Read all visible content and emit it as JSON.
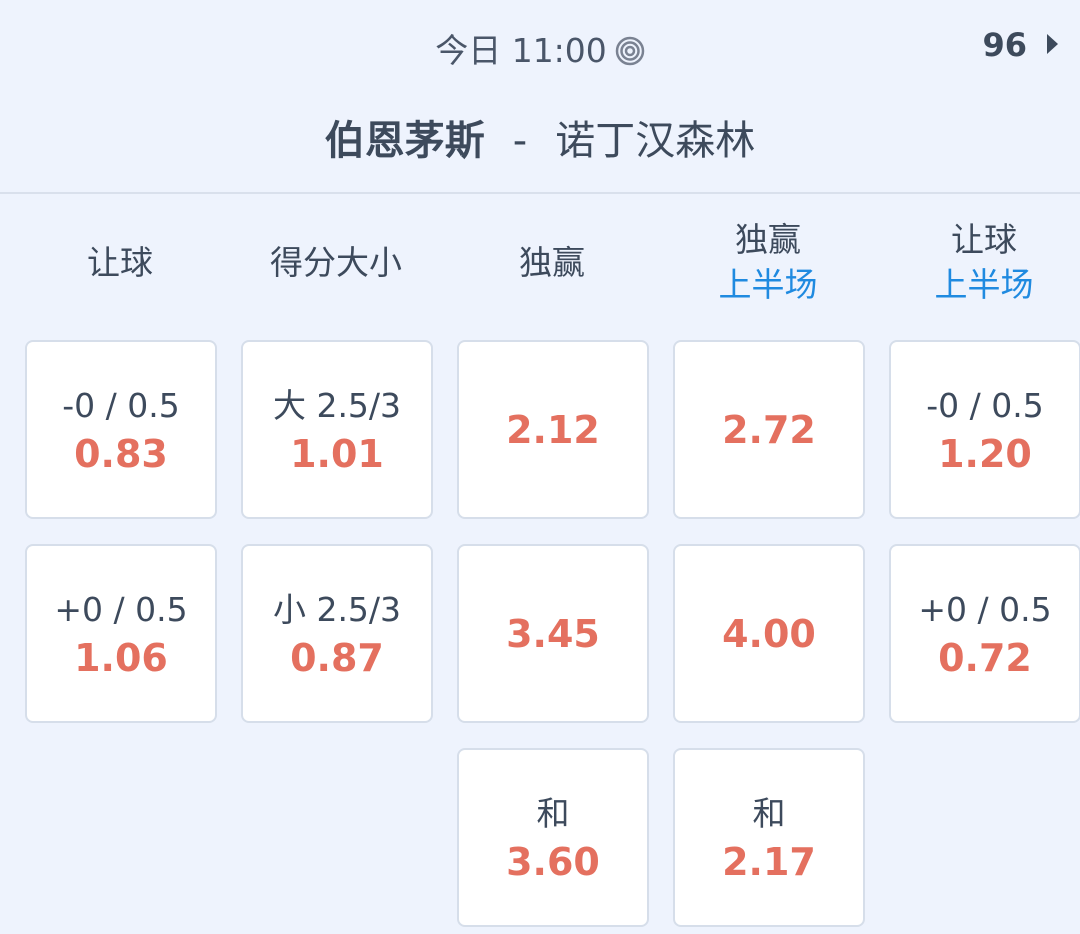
{
  "header": {
    "time": "今日 11:00",
    "live_icon": "target-icon",
    "market_count": "96",
    "home_team": "伯恩茅斯",
    "separator": "-",
    "away_team": "诺丁汉森林"
  },
  "colors": {
    "odds": "#e4705f",
    "sub_label": "#1f8ae0",
    "text": "#3d4a5c",
    "background": "#eef3fd"
  },
  "columns": [
    {
      "title": "让球",
      "sub": "",
      "cells": [
        {
          "label": "-0 / 0.5",
          "odds": "0.83"
        },
        {
          "label": "+0 / 0.5",
          "odds": "1.06"
        }
      ]
    },
    {
      "title": "得分大小",
      "sub": "",
      "cells": [
        {
          "label": "大 2.5/3",
          "odds": "1.01"
        },
        {
          "label": "小 2.5/3",
          "odds": "0.87"
        }
      ]
    },
    {
      "title": "独赢",
      "sub": "",
      "cells": [
        {
          "label": "",
          "odds": "2.12"
        },
        {
          "label": "",
          "odds": "3.45"
        },
        {
          "label": "和",
          "odds": "3.60"
        }
      ]
    },
    {
      "title": "独赢",
      "sub": "上半场",
      "cells": [
        {
          "label": "",
          "odds": "2.72"
        },
        {
          "label": "",
          "odds": "4.00"
        },
        {
          "label": "和",
          "odds": "2.17"
        }
      ]
    },
    {
      "title": "让球",
      "sub": "上半场",
      "cells": [
        {
          "label": "-0 / 0.5",
          "odds": "1.20"
        },
        {
          "label": "+0 / 0.5",
          "odds": "0.72"
        }
      ]
    }
  ]
}
